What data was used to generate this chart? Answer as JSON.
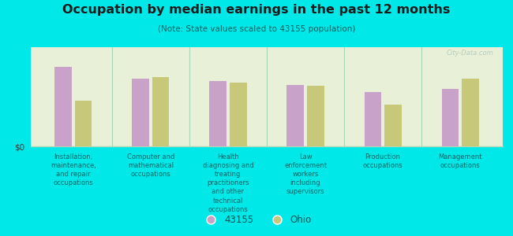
{
  "title": "Occupation by median earnings in the past 12 months",
  "subtitle": "(Note: State values scaled to 43155 population)",
  "categories": [
    "Installation,\nmaintenance,\nand repair\noccupations",
    "Computer and\nmathematical\noccupations",
    "Health\ndiagnosing and\ntreating\npractitioners\nand other\ntechnical\noccupations",
    "Law\nenforcement\nworkers\nincluding\nsupervisors",
    "Production\noccupations",
    "Management\noccupations"
  ],
  "values_43155": [
    0.8,
    0.68,
    0.66,
    0.62,
    0.55,
    0.58
  ],
  "values_ohio": [
    0.46,
    0.7,
    0.64,
    0.61,
    0.42,
    0.68
  ],
  "color_43155": "#c8a2c8",
  "color_ohio": "#c8c87a",
  "background_fig": "#00e8e8",
  "title_color": "#1a1a1a",
  "subtitle_color": "#006060",
  "ylabel": "$0",
  "legend_labels": [
    "43155",
    "Ohio"
  ],
  "watermark": "City-Data.com",
  "sep_color": "#a8d8b8",
  "bottom_color": "#00d8d8",
  "bar_alpha": 1.0
}
